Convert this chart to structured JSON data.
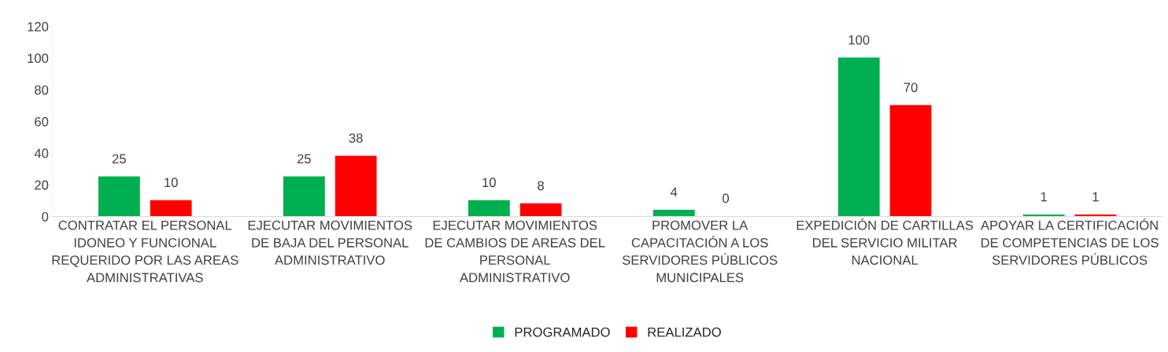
{
  "chart_data": {
    "type": "bar",
    "categories": [
      "CONTRATAR EL PERSONAL\nIDONEO Y FUNCIONAL\nREQUERIDO POR LAS AREAS\nADMINISTRATIVAS",
      "EJECUTAR MOVIMIENTOS\nDE BAJA DEL PERSONAL\nADMINISTRATIVO",
      "EJECUTAR MOVIMIENTOS\nDE CAMBIOS DE AREAS DEL\nPERSONAL\nADMINISTRATIVO",
      "PROMOVER LA\nCAPACITACIÓN A LOS\nSERVIDORES PÚBLICOS\nMUNICIPALES",
      "EXPEDICIÓN DE CARTILLAS\nDEL SERVICIO MILITAR\nNACIONAL",
      "APOYAR LA CERTIFICACIÓN\nDE COMPETENCIAS DE LOS\nSERVIDORES PÚBLICOS"
    ],
    "series": [
      {
        "name": "PROGRAMADO",
        "color": "#00b050",
        "values": [
          25,
          25,
          10,
          4,
          100,
          1
        ]
      },
      {
        "name": "REALIZADO",
        "color": "#ff0000",
        "values": [
          10,
          38,
          8,
          0,
          70,
          1
        ]
      }
    ],
    "ylim": [
      0,
      120
    ],
    "yticks": [
      0,
      20,
      40,
      60,
      80,
      100,
      120
    ],
    "data_labels": true,
    "grid": false,
    "legend": "bottom"
  }
}
